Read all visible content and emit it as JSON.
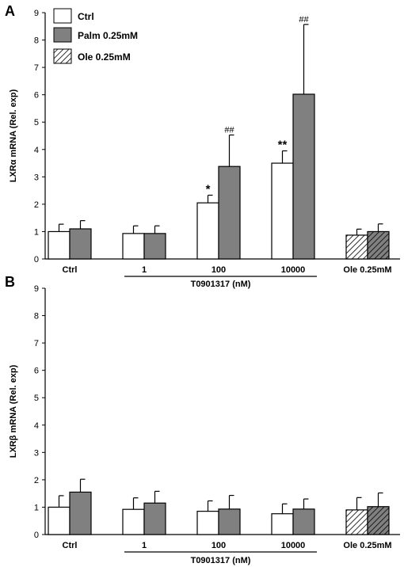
{
  "legend": {
    "entries": [
      {
        "label": "Ctrl",
        "style": "white"
      },
      {
        "label": "Palm 0.25mM",
        "style": "gray"
      },
      {
        "label": "Ole 0.25mM",
        "style": "hatch"
      }
    ]
  },
  "colors": {
    "white": "#ffffff",
    "gray": "#808080",
    "stroke": "#000000"
  },
  "chart_data": [
    {
      "type": "bar",
      "panel": "A",
      "ylabel": "LXRα  mRNA (Rel. exp)",
      "ylim": [
        0,
        9
      ],
      "yticks": [
        "0",
        "1",
        "2",
        "3",
        "4",
        "5",
        "6",
        "7",
        "8",
        "9"
      ],
      "categories": [
        "Ctrl",
        "1",
        "100",
        "10000",
        "Ole 0.25mM"
      ],
      "group_label": "T0901317 (nM)",
      "bars": [
        {
          "cat": 0,
          "style": "white",
          "value": 1.0,
          "err": 0.27
        },
        {
          "cat": 0,
          "style": "gray",
          "value": 1.1,
          "err": 0.3
        },
        {
          "cat": 1,
          "style": "white",
          "value": 0.93,
          "err": 0.28
        },
        {
          "cat": 1,
          "style": "gray",
          "value": 0.93,
          "err": 0.28
        },
        {
          "cat": 2,
          "style": "white",
          "value": 2.05,
          "err": 0.28,
          "mark": "*"
        },
        {
          "cat": 2,
          "style": "gray",
          "value": 3.38,
          "err": 1.15,
          "mark": "##"
        },
        {
          "cat": 3,
          "style": "white",
          "value": 3.5,
          "err": 0.45,
          "mark": "**"
        },
        {
          "cat": 3,
          "style": "gray",
          "value": 6.02,
          "err": 2.55,
          "mark": "##"
        },
        {
          "cat": 4,
          "style": "hatch",
          "value": 0.87,
          "err": 0.22
        },
        {
          "cat": 4,
          "style": "hatch",
          "value": 1.0,
          "err": 0.28
        }
      ]
    },
    {
      "type": "bar",
      "panel": "B",
      "ylabel": "LXRβ  mRNA (Rel. exp)",
      "ylim": [
        0,
        9
      ],
      "yticks": [
        "0",
        "1",
        "2",
        "3",
        "4",
        "5",
        "6",
        "7",
        "8",
        "9"
      ],
      "categories": [
        "Ctrl",
        "1",
        "100",
        "10000",
        "Ole 0.25mM"
      ],
      "group_label": "T0901317 (nM)",
      "bars": [
        {
          "cat": 0,
          "style": "white",
          "value": 1.0,
          "err": 0.42
        },
        {
          "cat": 0,
          "style": "gray",
          "value": 1.55,
          "err": 0.47
        },
        {
          "cat": 1,
          "style": "white",
          "value": 0.92,
          "err": 0.42
        },
        {
          "cat": 1,
          "style": "gray",
          "value": 1.15,
          "err": 0.43
        },
        {
          "cat": 2,
          "style": "white",
          "value": 0.85,
          "err": 0.38
        },
        {
          "cat": 2,
          "style": "gray",
          "value": 0.93,
          "err": 0.5
        },
        {
          "cat": 3,
          "style": "white",
          "value": 0.76,
          "err": 0.36
        },
        {
          "cat": 3,
          "style": "gray",
          "value": 0.93,
          "err": 0.37
        },
        {
          "cat": 4,
          "style": "hatch",
          "value": 0.9,
          "err": 0.45
        },
        {
          "cat": 4,
          "style": "hatch",
          "value": 1.02,
          "err": 0.5
        }
      ]
    }
  ]
}
